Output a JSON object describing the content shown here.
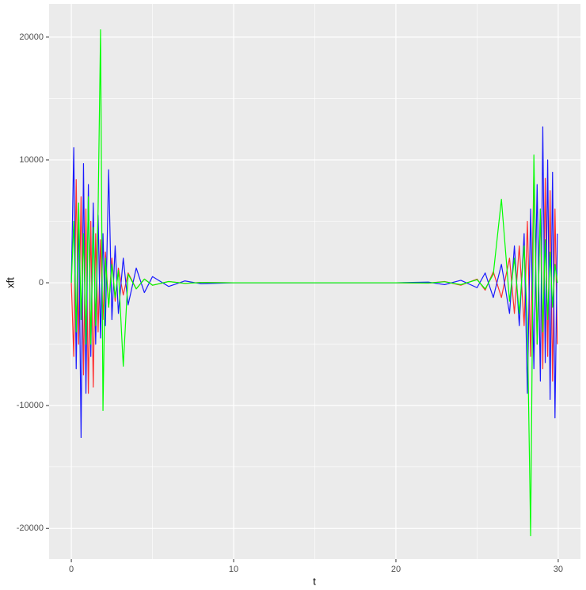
{
  "chart_data": {
    "type": "line",
    "x_label": "t",
    "y_label": "xft",
    "x": [
      0,
      0.15,
      0.3,
      0.45,
      0.6,
      0.75,
      0.9,
      1.05,
      1.2,
      1.35,
      1.5,
      1.65,
      1.8,
      1.95,
      2.1,
      2.3,
      2.5,
      2.7,
      2.9,
      3.2,
      3.5,
      4,
      4.5,
      5,
      6,
      7,
      8,
      10,
      15,
      20,
      22,
      23,
      24,
      25,
      25.5,
      26,
      26.5,
      27,
      27.3,
      27.6,
      27.9,
      28.1,
      28.3,
      28.5,
      28.7,
      28.9,
      29.05,
      29.2,
      29.35,
      29.5,
      29.65,
      29.8,
      29.95
    ],
    "series": [
      {
        "color": "#ff3030",
        "values": [
          0,
          -6000,
          8400,
          -5000,
          7000,
          -7500,
          6000,
          -9000,
          5000,
          -8500,
          4000,
          -4000,
          3500,
          -3000,
          2500,
          -2000,
          2000,
          -1500,
          1200,
          -1000,
          800,
          -500,
          300,
          -200,
          100,
          -50,
          30,
          0,
          0,
          0,
          -30,
          100,
          -200,
          300,
          -600,
          900,
          -1200,
          2000,
          -2500,
          3000,
          -3500,
          5000,
          -6000,
          9000,
          -5000,
          6000,
          -7000,
          8500,
          -6000,
          7500,
          -8000,
          6000,
          -5000
        ]
      },
      {
        "color": "#1a1aff",
        "values": [
          0,
          11000,
          -7000,
          6000,
          -12600,
          9700,
          -9000,
          8000,
          -6000,
          6500,
          -5000,
          5500,
          -4500,
          4000,
          -3500,
          9200,
          -3000,
          3000,
          -2500,
          2000,
          -1800,
          1200,
          -800,
          500,
          -300,
          150,
          -80,
          0,
          0,
          0,
          50,
          -150,
          200,
          -400,
          800,
          -1200,
          1500,
          -2500,
          3000,
          -3500,
          4000,
          -9000,
          6000,
          -7000,
          8000,
          -8000,
          12700,
          -6500,
          10000,
          -9500,
          9000,
          -11000,
          4000
        ]
      },
      {
        "color": "#00ff00",
        "values": [
          0,
          5000,
          -4000,
          6500,
          -3000,
          4000,
          -5000,
          7000,
          -5000,
          4500,
          -3500,
          6000,
          20600,
          -10400,
          2000,
          -2000,
          1500,
          -1200,
          1000,
          -6800,
          700,
          -500,
          300,
          -200,
          100,
          -50,
          20,
          0,
          0,
          0,
          -20,
          80,
          -150,
          250,
          -500,
          700,
          6800,
          -1500,
          2000,
          -2500,
          3000,
          -3500,
          -20600,
          10400,
          -5000,
          6000,
          -4000,
          3500,
          -3000,
          2500,
          -2000,
          1500,
          0
        ]
      }
    ],
    "xlim": [
      -1.37,
      31.37
    ],
    "ylim": [
      -22500,
      22700
    ],
    "xticks": [
      0,
      10,
      20,
      30
    ],
    "yticks": [
      -20000,
      -10000,
      0,
      10000,
      20000
    ],
    "x_minor_ticks": [
      5,
      15,
      25
    ],
    "y_minor_ticks": [
      -15000,
      -5000,
      5000,
      15000
    ],
    "grid": true
  }
}
